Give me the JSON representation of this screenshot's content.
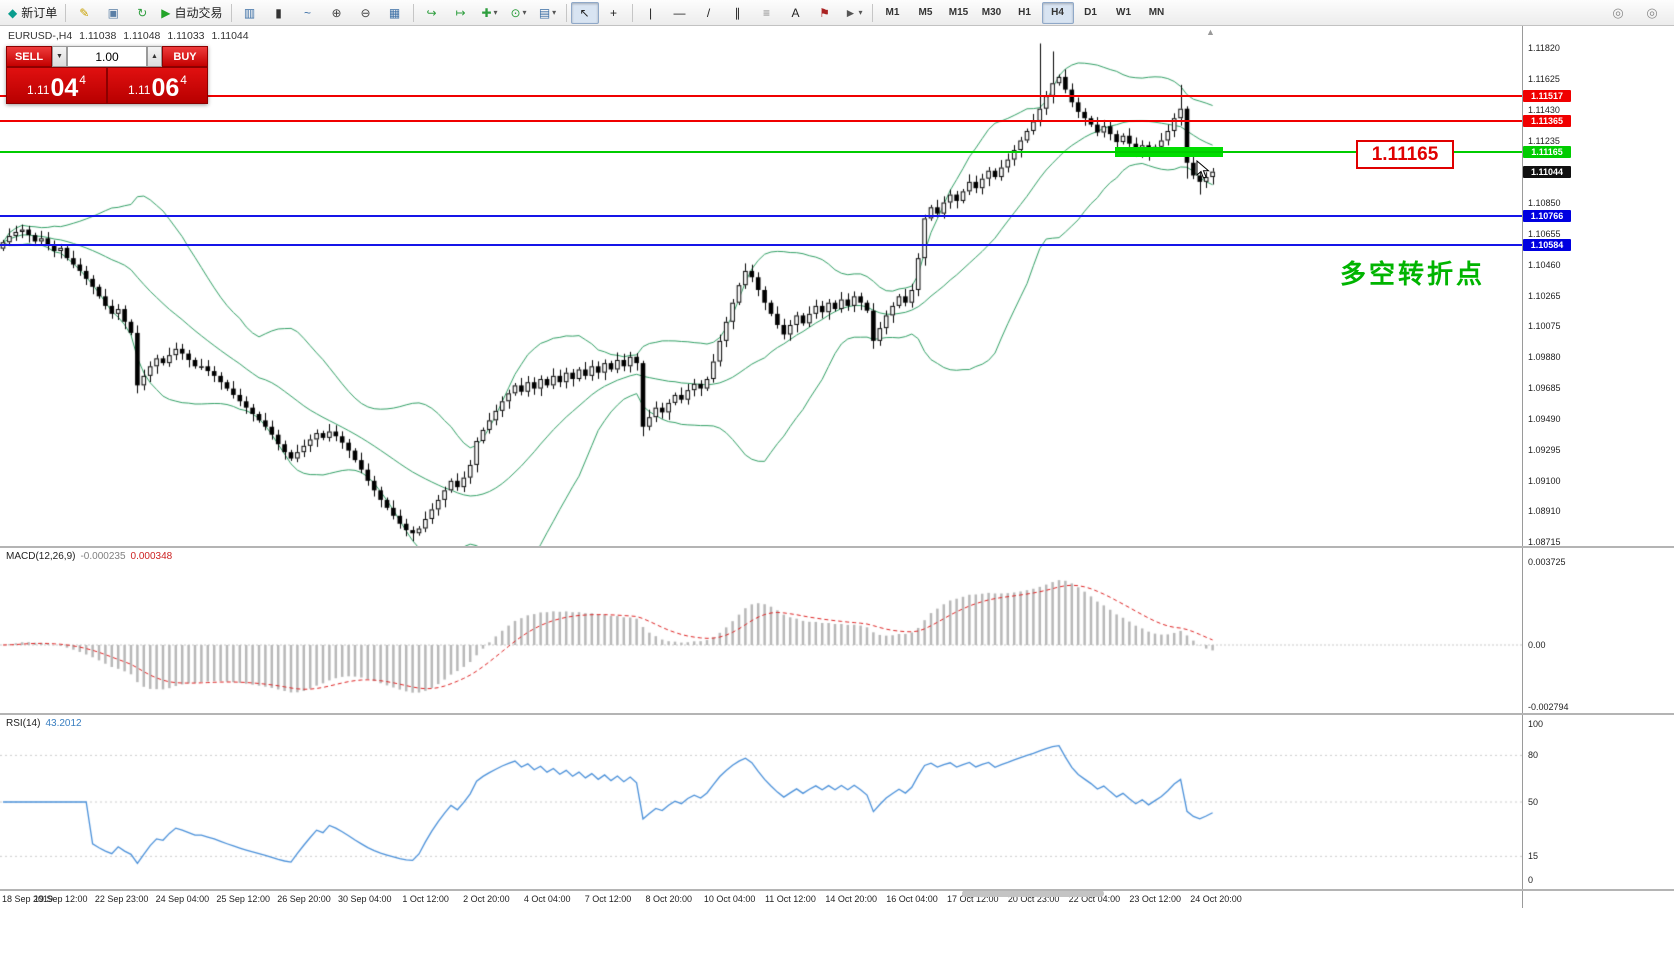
{
  "toolbar": {
    "items": [
      {
        "name": "new-order-button",
        "glyph": "◆",
        "color": "#0a9d8e",
        "label": "新订单"
      },
      {
        "sep": true
      },
      {
        "name": "metaeditor-icon",
        "glyph": "✎",
        "color": "#c8a000"
      },
      {
        "name": "profile-icon",
        "glyph": "▣",
        "color": "#5b7fa6"
      },
      {
        "name": "refresh-icon",
        "glyph": "↻",
        "color": "#2e9e3e"
      },
      {
        "name": "auto-trading-button",
        "glyph": "▶",
        "color": "#23a429",
        "label": "自动交易"
      },
      {
        "sep": true
      },
      {
        "name": "bar-chart-icon",
        "glyph": "▥",
        "color": "#3a6ea5"
      },
      {
        "name": "candlestick-icon",
        "glyph": "▮",
        "color": "#333333"
      },
      {
        "name": "line-chart-icon",
        "glyph": "~",
        "color": "#3a6ea5"
      },
      {
        "name": "zoom-in-icon",
        "glyph": "⊕",
        "color": "#444444"
      },
      {
        "name": "zoom-out-icon",
        "glyph": "⊖",
        "color": "#444444"
      },
      {
        "name": "tile-windows-icon",
        "glyph": "▦",
        "color": "#3a6ea5"
      },
      {
        "sep": true
      },
      {
        "name": "auto-scroll-icon",
        "glyph": "↪",
        "color": "#2e9e3e"
      },
      {
        "name": "chart-shift-icon",
        "glyph": "↦",
        "color": "#2e9e3e"
      },
      {
        "name": "indicators-button",
        "glyph": "✚",
        "color": "#2e9e3e",
        "caret": true
      },
      {
        "name": "periods-button",
        "glyph": "⊙",
        "color": "#2e9e3e",
        "caret": true
      },
      {
        "name": "templates-button",
        "glyph": "▤",
        "color": "#3a6ea5",
        "caret": true
      },
      {
        "sep": true
      },
      {
        "name": "cursor-icon",
        "glyph": "↖",
        "color": "#222222",
        "active": true
      },
      {
        "name": "crosshair-icon",
        "glyph": "+",
        "color": "#222222"
      },
      {
        "sep": true
      },
      {
        "name": "vertical-line-icon",
        "glyph": "|",
        "color": "#222222"
      },
      {
        "name": "horizontal-line-icon",
        "glyph": "—",
        "color": "#222222"
      },
      {
        "name": "trendline-icon",
        "glyph": "/",
        "color": "#222222"
      },
      {
        "name": "channel-icon",
        "glyph": "∥",
        "color": "#222222"
      },
      {
        "name": "fibonacci-icon",
        "glyph": "≡",
        "color": "#888888"
      },
      {
        "name": "text-icon",
        "glyph": "A",
        "color": "#222222"
      },
      {
        "name": "label-icon",
        "glyph": "⚑",
        "color": "#aa2222"
      },
      {
        "name": "arrows-button",
        "glyph": "►",
        "color": "#555555",
        "caret": true
      },
      {
        "sep": true
      }
    ],
    "timeframes": [
      "M1",
      "M5",
      "M15",
      "M30",
      "H1",
      "H4",
      "D1",
      "W1",
      "MN"
    ],
    "active_timeframe": "H4",
    "right_icons": [
      {
        "name": "magnifier-icon-1",
        "glyph": "◎"
      },
      {
        "name": "magnifier-icon-2",
        "glyph": "◎"
      }
    ],
    "caret_glyph": "▾"
  },
  "chart_header": {
    "symbol": "EURUSD-,H4",
    "open": "1.11038",
    "high": "1.11048",
    "low": "1.11033",
    "close": "1.11044"
  },
  "trade_panel": {
    "sell_label": "SELL",
    "buy_label": "BUY",
    "volume": "1.00",
    "volume_down_icon": "▼",
    "volume_up_icon": "▲",
    "sell_price_prefix": "1.11",
    "sell_price_main": "04",
    "sell_price_sup": "4",
    "buy_price_prefix": "1.11",
    "buy_price_main": "06",
    "buy_price_sup": "4"
  },
  "main_chart": {
    "price_axis": {
      "ticks": [
        "1.11820",
        "1.11625",
        "1.11430",
        "1.11235",
        "1.10850",
        "1.10655",
        "1.10460",
        "1.10265",
        "1.10075",
        "1.09880",
        "1.09685",
        "1.09490",
        "1.09295",
        "1.09100",
        "1.08910",
        "1.08715"
      ],
      "tags": [
        {
          "label": "1.11517",
          "value": 1.11517,
          "bg": "#f00000"
        },
        {
          "label": "1.11365",
          "value": 1.11365,
          "bg": "#f00000"
        },
        {
          "label": "1.11165",
          "value": 1.11165,
          "bg": "#00cc00"
        },
        {
          "label": "1.11044",
          "value": 1.11044,
          "bg": "#101010"
        },
        {
          "label": "1.10766",
          "value": 1.10766,
          "bg": "#0000e0"
        },
        {
          "label": "1.10584",
          "value": 1.10584,
          "bg": "#0000e0"
        }
      ]
    },
    "levels": [
      {
        "value": 1.11517,
        "color": "#f00000",
        "width": 2
      },
      {
        "value": 1.11365,
        "color": "#f00000",
        "width": 2
      },
      {
        "value": 1.11165,
        "color": "#00cc00",
        "width": 2
      },
      {
        "value": 1.10766,
        "color": "#1515e8",
        "width": 2
      },
      {
        "value": 1.10584,
        "color": "#1515e8",
        "width": 2
      }
    ],
    "callout": {
      "text": "1.11165"
    },
    "annotation": {
      "text": "多空转折点"
    }
  },
  "chart_data": {
    "type": "candlestick",
    "symbol": "EURUSD",
    "timeframe": "H4",
    "bar_spacing": 6.4,
    "bar_width": 4.6,
    "ylim": [
      1.0869,
      1.1196
    ],
    "closes": [
      1.106,
      1.1064,
      1.10665,
      1.1068,
      1.10645,
      1.10605,
      1.10625,
      1.1058,
      1.10545,
      1.10565,
      1.105,
      1.1046,
      1.1042,
      1.1037,
      1.1032,
      1.1026,
      1.102,
      1.1015,
      1.1018,
      1.101,
      1.1003,
      1.097,
      1.0976,
      1.0982,
      1.0987,
      1.0984,
      1.0989,
      1.0993,
      1.099,
      1.0986,
      1.0982,
      1.0982,
      1.0979,
      1.0976,
      1.0972,
      1.0968,
      1.0964,
      1.096,
      1.0956,
      1.0952,
      1.0948,
      1.0944,
      1.0939,
      1.0933,
      1.0928,
      1.0924,
      1.0928,
      1.0932,
      1.0936,
      1.094,
      1.0937,
      1.0941,
      1.0938,
      1.0934,
      1.0929,
      1.0923,
      1.0917,
      1.091,
      1.0904,
      1.0898,
      1.0893,
      1.0888,
      1.0883,
      1.0879,
      1.0877,
      1.088,
      1.0886,
      1.0892,
      1.0898,
      1.0904,
      1.091,
      1.0906,
      1.0912,
      1.092,
      1.0935,
      1.0942,
      1.0948,
      1.0954,
      1.096,
      1.0965,
      1.097,
      1.0966,
      1.0972,
      1.0968,
      1.0974,
      1.097,
      1.0976,
      1.0972,
      1.0978,
      1.0974,
      1.098,
      1.0976,
      1.0982,
      1.0978,
      1.0984,
      1.098,
      1.0986,
      1.0982,
      1.0988,
      1.0984,
      1.0944,
      1.095,
      1.0956,
      1.0953,
      1.0959,
      1.0964,
      1.0961,
      1.0967,
      1.0971,
      1.0968,
      1.0974,
      1.0985,
      1.0998,
      1.101,
      1.1022,
      1.1033,
      1.1042,
      1.1038,
      1.103,
      1.1022,
      1.1015,
      1.1008,
      1.1002,
      1.1008,
      1.1014,
      1.1009,
      1.1015,
      1.102,
      1.1016,
      1.1022,
      1.1018,
      1.1024,
      1.102,
      1.1026,
      1.1022,
      1.1017,
      1.0998,
      1.1006,
      1.1014,
      1.102,
      1.1026,
      1.1022,
      1.103,
      1.105,
      1.1075,
      1.1082,
      1.1078,
      1.1085,
      1.109,
      1.1086,
      1.1092,
      1.1098,
      1.1094,
      1.11,
      1.1105,
      1.1101,
      1.1107,
      1.1112,
      1.1118,
      1.1124,
      1.113,
      1.1136,
      1.1144,
      1.1152,
      1.116,
      1.1164,
      1.1156,
      1.1148,
      1.1142,
      1.1138,
      1.1134,
      1.1129,
      1.1133,
      1.1128,
      1.1123,
      1.1127,
      1.1122,
      1.1117,
      1.1121,
      1.1116,
      1.112,
      1.1124,
      1.113,
      1.1138,
      1.1144,
      1.111,
      1.1102,
      1.1098,
      1.1101,
      1.11044
    ],
    "wick_overrides": [
      {
        "i": 21,
        "low": 1.0965
      },
      {
        "i": 64,
        "low": 1.0872
      },
      {
        "i": 100,
        "low": 1.0938
      },
      {
        "i": 136,
        "low": 1.0993
      },
      {
        "i": 162,
        "high": 1.1185
      },
      {
        "i": 164,
        "high": 1.118
      },
      {
        "i": 184,
        "high": 1.1159
      },
      {
        "i": 185,
        "low": 1.11
      },
      {
        "i": 187,
        "low": 1.109
      }
    ],
    "bollinger": {
      "period": 20,
      "deviation": 2,
      "color": "#2f9e63"
    },
    "highlight_zone": {
      "price": 1.11165,
      "from_bar": 174,
      "to_bar": 191
    },
    "macd": {
      "name_label": "MACD(12,26,9)",
      "params": [
        12,
        26,
        9
      ],
      "main_value": "-0.000235",
      "signal_value": "0.000348",
      "ylim": [
        -0.00305,
        0.00435
      ],
      "axis": [
        {
          "label": "0.003725",
          "value": 0.003725
        },
        {
          "label": "0.00",
          "value": 0
        },
        {
          "label": "-0.002794",
          "value": -0.002794
        }
      ],
      "histogram_color": "#b8b8b8",
      "signal_color": "#dd2222"
    },
    "rsi": {
      "name_label": "RSI(14)",
      "period": 14,
      "value": "43.2012",
      "ylim": [
        -6,
        106
      ],
      "axis": [
        {
          "label": "100",
          "value": 100
        },
        {
          "label": "80",
          "value": 80
        },
        {
          "label": "50",
          "value": 50
        },
        {
          "label": "15",
          "value": 15
        },
        {
          "label": "0",
          "value": 0
        }
      ],
      "levels": [
        80,
        50,
        15
      ],
      "color": "#4a90d9"
    }
  },
  "time_axis": {
    "labels": [
      "18 Sep 2019",
      "19 Sep 12:00",
      "22 Sep 23:00",
      "24 Sep 04:00",
      "25 Sep 12:00",
      "26 Sep 20:00",
      "30 Sep 04:00",
      "1 Oct 12:00",
      "2 Oct 20:00",
      "4 Oct 04:00",
      "7 Oct 12:00",
      "8 Oct 20:00",
      "10 Oct 04:00",
      "11 Oct 12:00",
      "14 Oct 20:00",
      "16 Oct 04:00",
      "17 Oct 12:00",
      "20 Oct 23:00",
      "22 Oct 04:00",
      "23 Oct 12:00",
      "24 Oct 20:00"
    ]
  }
}
